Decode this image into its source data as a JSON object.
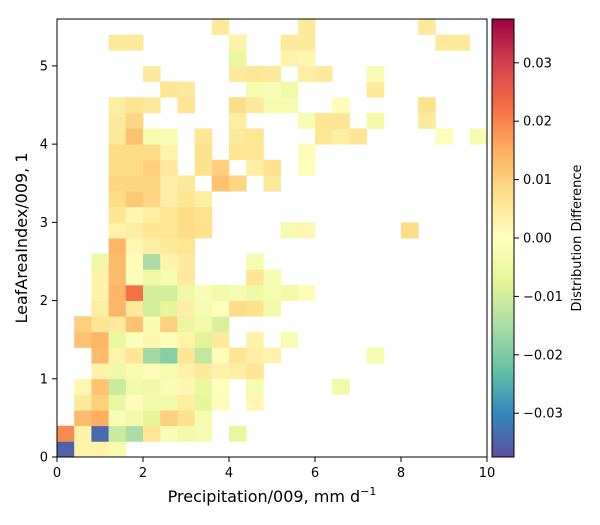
{
  "chart_data": {
    "type": "heatmap",
    "xlabel": "Precipitation/009,  mm d",
    "xlabel_superscript": "−1",
    "ylabel": "LeafAreaIndex/009,  1",
    "xlim": [
      0,
      10
    ],
    "ylim": [
      0,
      5.6
    ],
    "xticks": [
      0,
      2,
      4,
      6,
      8,
      10
    ],
    "yticks": [
      0,
      1,
      2,
      3,
      4,
      5
    ],
    "xtick_labels": [
      "0",
      "2",
      "4",
      "6",
      "8",
      "10"
    ],
    "ytick_labels": [
      "0",
      "1",
      "2",
      "3",
      "4",
      "5"
    ],
    "bin_width": 0.4,
    "bin_height": 0.2,
    "grid": false,
    "colormap": "Spectral_r",
    "colorbar": {
      "label": "Distribution Difference",
      "vmin": -0.0375,
      "vmax": 0.0375,
      "ticks": [
        -0.03,
        -0.02,
        -0.01,
        0.0,
        0.01,
        0.02,
        0.03
      ],
      "tick_labels": [
        "−0.03",
        "−0.02",
        "−0.01",
        "0.00",
        "0.01",
        "0.02",
        "0.03"
      ]
    },
    "cells": [
      [
        0,
        0,
        -0.035
      ],
      [
        0,
        1,
        0.019
      ],
      [
        1,
        0,
        0.003
      ],
      [
        1,
        1,
        0.003
      ],
      [
        1,
        2,
        0.013
      ],
      [
        1,
        3,
        0.005
      ],
      [
        1,
        4,
        0.002
      ],
      [
        1,
        7,
        0.012
      ],
      [
        1,
        8,
        0.01
      ],
      [
        2,
        0,
        0.003
      ],
      [
        2,
        1,
        -0.034
      ],
      [
        2,
        2,
        0.015
      ],
      [
        2,
        3,
        0.01
      ],
      [
        2,
        4,
        0.012
      ],
      [
        2,
        5,
        0.003
      ],
      [
        2,
        6,
        0.013
      ],
      [
        2,
        7,
        0.014
      ],
      [
        2,
        8,
        0.006
      ],
      [
        2,
        9,
        0.004
      ],
      [
        2,
        10,
        0.003
      ],
      [
        2,
        11,
        0.003
      ],
      [
        2,
        12,
        -0.005
      ],
      [
        3,
        0,
        -0.003
      ],
      [
        3,
        1,
        -0.011
      ],
      [
        3,
        2,
        -0.002
      ],
      [
        3,
        3,
        -0.006
      ],
      [
        3,
        4,
        -0.011
      ],
      [
        3,
        5,
        -0.005
      ],
      [
        3,
        6,
        0.003
      ],
      [
        3,
        7,
        -0.006
      ],
      [
        3,
        8,
        0.005
      ],
      [
        3,
        9,
        0.014
      ],
      [
        3,
        10,
        0.014
      ],
      [
        3,
        11,
        0.013
      ],
      [
        3,
        12,
        0.013
      ],
      [
        3,
        13,
        0.014
      ],
      [
        3,
        14,
        0.003
      ],
      [
        3,
        15,
        0.006
      ],
      [
        3,
        16,
        0.008
      ],
      [
        3,
        17,
        0.009
      ],
      [
        3,
        18,
        0.008
      ],
      [
        3,
        19,
        0.008
      ],
      [
        3,
        20,
        0.005
      ],
      [
        3,
        21,
        0.005
      ],
      [
        3,
        22,
        0.004
      ],
      [
        3,
        26,
        0.005
      ],
      [
        4,
        1,
        -0.015
      ],
      [
        4,
        2,
        -0.004
      ],
      [
        4,
        3,
        0.001
      ],
      [
        4,
        4,
        -0.004
      ],
      [
        4,
        5,
        -0.003
      ],
      [
        4,
        6,
        0.006
      ],
      [
        4,
        7,
        -0.001
      ],
      [
        4,
        8,
        0.012
      ],
      [
        4,
        9,
        0.005
      ],
      [
        4,
        10,
        0.022
      ],
      [
        4,
        11,
        0.001
      ],
      [
        4,
        12,
        0.001
      ],
      [
        4,
        13,
        0.002
      ],
      [
        4,
        14,
        0.004
      ],
      [
        4,
        15,
        0.002
      ],
      [
        4,
        16,
        0.011
      ],
      [
        4,
        17,
        0.009
      ],
      [
        4,
        18,
        0.008
      ],
      [
        4,
        19,
        0.008
      ],
      [
        4,
        20,
        0.012
      ],
      [
        4,
        21,
        0.009
      ],
      [
        4,
        22,
        0.006
      ],
      [
        4,
        26,
        0.005
      ],
      [
        5,
        1,
        0.006
      ],
      [
        5,
        2,
        -0.007
      ],
      [
        5,
        3,
        -0.004
      ],
      [
        5,
        4,
        -0.005
      ],
      [
        5,
        5,
        0.001
      ],
      [
        5,
        6,
        -0.016
      ],
      [
        5,
        7,
        0.002
      ],
      [
        5,
        8,
        -0.003
      ],
      [
        5,
        9,
        -0.01
      ],
      [
        5,
        10,
        -0.01
      ],
      [
        5,
        11,
        -0.005
      ],
      [
        5,
        12,
        -0.015
      ],
      [
        5,
        13,
        0.004
      ],
      [
        5,
        14,
        0.006
      ],
      [
        5,
        15,
        0.004
      ],
      [
        5,
        16,
        0.009
      ],
      [
        5,
        17,
        0.009
      ],
      [
        5,
        18,
        0.01
      ],
      [
        5,
        19,
        0.008
      ],
      [
        5,
        20,
        -0.003
      ],
      [
        5,
        22,
        0.005
      ],
      [
        5,
        24,
        0.005
      ],
      [
        6,
        1,
        -0.002
      ],
      [
        6,
        2,
        0.01
      ],
      [
        6,
        3,
        -0.004
      ],
      [
        6,
        4,
        -0.002
      ],
      [
        6,
        5,
        -0.003
      ],
      [
        6,
        6,
        -0.019
      ],
      [
        6,
        7,
        -0.001
      ],
      [
        6,
        8,
        0.01
      ],
      [
        6,
        9,
        -0.007
      ],
      [
        6,
        10,
        -0.01
      ],
      [
        6,
        11,
        -0.003
      ],
      [
        6,
        12,
        0.003
      ],
      [
        6,
        13,
        0.005
      ],
      [
        6,
        14,
        0.006
      ],
      [
        6,
        15,
        0.006
      ],
      [
        6,
        16,
        0.004
      ],
      [
        6,
        17,
        0.004
      ],
      [
        6,
        18,
        0.005
      ],
      [
        6,
        19,
        0.003
      ],
      [
        6,
        20,
        -0.002
      ],
      [
        6,
        23,
        0.006
      ],
      [
        7,
        1,
        -0.004
      ],
      [
        7,
        2,
        0.007
      ],
      [
        7,
        3,
        0.004
      ],
      [
        7,
        4,
        0.002
      ],
      [
        7,
        5,
        0.003
      ],
      [
        7,
        6,
        0.006
      ],
      [
        7,
        7,
        0.003
      ],
      [
        7,
        8,
        -0.006
      ],
      [
        7,
        9,
        0.004
      ],
      [
        7,
        10,
        -0.005
      ],
      [
        7,
        11,
        0.005
      ],
      [
        7,
        12,
        0.005
      ],
      [
        7,
        13,
        0.006
      ],
      [
        7,
        14,
        0.008
      ],
      [
        7,
        15,
        0.008
      ],
      [
        7,
        16,
        0.006
      ],
      [
        7,
        17,
        0.005
      ],
      [
        7,
        22,
        0.006
      ],
      [
        7,
        23,
        0.005
      ],
      [
        8,
        1,
        -0.003
      ],
      [
        8,
        2,
        -0.003
      ],
      [
        8,
        3,
        -0.007
      ],
      [
        8,
        4,
        -0.006
      ],
      [
        8,
        5,
        0.005
      ],
      [
        8,
        6,
        -0.012
      ],
      [
        8,
        7,
        -0.008
      ],
      [
        8,
        8,
        -0.004
      ],
      [
        8,
        9,
        -0.003
      ],
      [
        8,
        10,
        -0.002
      ],
      [
        8,
        14,
        0.007
      ],
      [
        8,
        15,
        0.007
      ],
      [
        8,
        16,
        0.004
      ],
      [
        8,
        18,
        0.007
      ],
      [
        8,
        19,
        0.007
      ],
      [
        8,
        20,
        0.006
      ],
      [
        9,
        3,
        0.001
      ],
      [
        9,
        4,
        -0.001
      ],
      [
        9,
        5,
        0.003
      ],
      [
        9,
        6,
        0.001
      ],
      [
        9,
        7,
        0.005
      ],
      [
        9,
        8,
        -0.009
      ],
      [
        9,
        9,
        -0.001
      ],
      [
        9,
        10,
        -0.004
      ],
      [
        9,
        17,
        0.012
      ],
      [
        9,
        18,
        0.01
      ],
      [
        9,
        27,
        0.005
      ],
      [
        10,
        1,
        -0.006
      ],
      [
        10,
        5,
        0.004
      ],
      [
        10,
        6,
        0.006
      ],
      [
        10,
        9,
        0.008
      ],
      [
        10,
        10,
        -0.003
      ],
      [
        10,
        17,
        0.009
      ],
      [
        10,
        19,
        0.006
      ],
      [
        10,
        20,
        0.005
      ],
      [
        10,
        21,
        0.004
      ],
      [
        10,
        22,
        0.008
      ],
      [
        10,
        24,
        0.005
      ],
      [
        10,
        25,
        -0.006
      ],
      [
        10,
        26,
        0.003
      ],
      [
        11,
        3,
        0.002
      ],
      [
        11,
        4,
        -0.003
      ],
      [
        11,
        5,
        0.006
      ],
      [
        11,
        6,
        0.004
      ],
      [
        11,
        7,
        0.003
      ],
      [
        11,
        9,
        0.007
      ],
      [
        11,
        10,
        -0.005
      ],
      [
        11,
        11,
        0.006
      ],
      [
        11,
        12,
        -0.003
      ],
      [
        11,
        18,
        0.004
      ],
      [
        11,
        19,
        0.006
      ],
      [
        11,
        20,
        0.006
      ],
      [
        11,
        22,
        0.005
      ],
      [
        11,
        23,
        -0.003
      ],
      [
        11,
        24,
        0.006
      ],
      [
        12,
        6,
        0.003
      ],
      [
        12,
        9,
        -0.004
      ],
      [
        12,
        10,
        -0.003
      ],
      [
        12,
        11,
        -0.003
      ],
      [
        12,
        17,
        0.005
      ],
      [
        12,
        18,
        0.007
      ],
      [
        12,
        22,
        -0.003
      ],
      [
        12,
        23,
        -0.002
      ],
      [
        12,
        24,
        0.005
      ],
      [
        13,
        7,
        -0.002
      ],
      [
        13,
        10,
        -0.004
      ],
      [
        13,
        14,
        -0.003
      ],
      [
        13,
        22,
        -0.003
      ],
      [
        13,
        23,
        -0.004
      ],
      [
        13,
        25,
        0.003
      ],
      [
        13,
        26,
        0.005
      ],
      [
        14,
        10,
        0.001
      ],
      [
        14,
        14,
        0.002
      ],
      [
        14,
        18,
        -0.001
      ],
      [
        14,
        19,
        0.001
      ],
      [
        14,
        21,
        -0.002
      ],
      [
        14,
        24,
        0.004
      ],
      [
        14,
        25,
        0.002
      ],
      [
        14,
        26,
        0.005
      ],
      [
        14,
        27,
        0.005
      ],
      [
        15,
        20,
        0.006
      ],
      [
        15,
        21,
        0.006
      ],
      [
        15,
        24,
        0.005
      ],
      [
        16,
        4,
        -0.004
      ],
      [
        16,
        20,
        0.004
      ],
      [
        16,
        21,
        0.006
      ],
      [
        16,
        22,
        0.001
      ],
      [
        17,
        20,
        0.006
      ],
      [
        18,
        6,
        -0.003
      ],
      [
        18,
        21,
        -0.004
      ],
      [
        18,
        23,
        0.005
      ],
      [
        18,
        24,
        -0.002
      ],
      [
        20,
        14,
        0.008
      ],
      [
        21,
        21,
        0.005
      ],
      [
        21,
        22,
        0.007
      ],
      [
        21,
        27,
        0.005
      ],
      [
        22,
        20,
        -0.001
      ],
      [
        22,
        26,
        0.005
      ],
      [
        23,
        26,
        0.005
      ],
      [
        24,
        20,
        -0.003
      ]
    ]
  }
}
